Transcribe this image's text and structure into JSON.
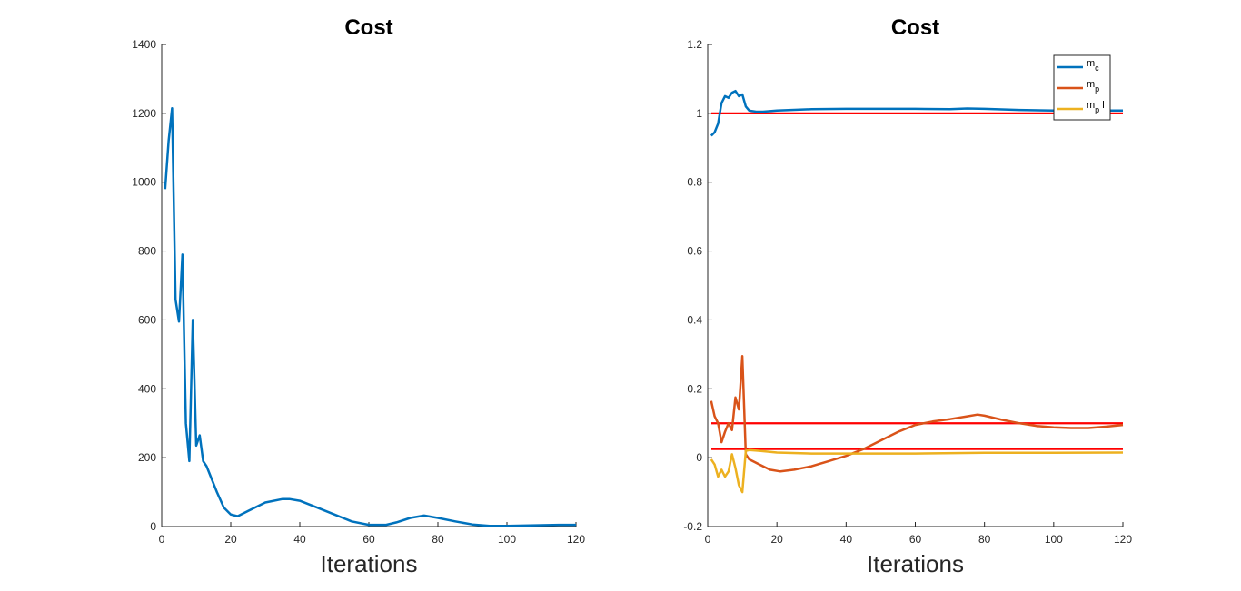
{
  "chart_data": [
    {
      "type": "line",
      "title": "Cost",
      "xlabel": "Iterations",
      "ylabel": "",
      "xlim": [
        0,
        120
      ],
      "ylim": [
        0,
        1400
      ],
      "xticks": [
        "0",
        "20",
        "40",
        "60",
        "80",
        "100",
        "120"
      ],
      "yticks": [
        "0",
        "200",
        "400",
        "600",
        "800",
        "1000",
        "1200",
        "1400"
      ],
      "grid": false,
      "series": [
        {
          "color": "#0072BD",
          "x": [
            1,
            2,
            3,
            4,
            5,
            6,
            7,
            8,
            9,
            10,
            11,
            12,
            13,
            14,
            16,
            18,
            20,
            22,
            25,
            30,
            35,
            37,
            40,
            45,
            50,
            55,
            60,
            65,
            68,
            72,
            76,
            80,
            85,
            90,
            95,
            100,
            105,
            110,
            115,
            120
          ],
          "y": [
            980,
            1120,
            1215,
            660,
            595,
            790,
            300,
            190,
            600,
            235,
            265,
            190,
            175,
            150,
            100,
            55,
            35,
            30,
            45,
            70,
            80,
            80,
            75,
            55,
            35,
            15,
            5,
            5,
            12,
            25,
            32,
            25,
            15,
            6,
            2,
            2,
            3,
            4,
            5,
            5
          ]
        }
      ]
    },
    {
      "type": "line",
      "title": "Cost",
      "xlabel": "Iterations",
      "ylabel": "",
      "xlim": [
        0,
        120
      ],
      "ylim": [
        -0.2,
        1.2
      ],
      "xticks": [
        "0",
        "20",
        "40",
        "60",
        "80",
        "100",
        "120"
      ],
      "yticks": [
        "-0.2",
        "0",
        "0.2",
        "0.4",
        "0.6",
        "0.8",
        "1",
        "1.2"
      ],
      "grid": false,
      "legend_position": "top-right",
      "reference_lines": [
        {
          "y": 1.0,
          "color": "#FF0000"
        },
        {
          "y": 0.1,
          "color": "#FF0000"
        },
        {
          "y": 0.025,
          "color": "#FF0000"
        }
      ],
      "series": [
        {
          "name": "m",
          "sub": "c",
          "suffix": "",
          "color": "#0072BD",
          "x": [
            1,
            2,
            3,
            4,
            5,
            6,
            7,
            8,
            9,
            10,
            11,
            12,
            14,
            16,
            20,
            30,
            40,
            60,
            70,
            75,
            80,
            90,
            100,
            110,
            120
          ],
          "y": [
            0.935,
            0.945,
            0.97,
            1.03,
            1.05,
            1.045,
            1.06,
            1.065,
            1.05,
            1.055,
            1.02,
            1.008,
            1.005,
            1.005,
            1.008,
            1.012,
            1.013,
            1.013,
            1.012,
            1.014,
            1.013,
            1.01,
            1.008,
            1.008,
            1.008
          ]
        },
        {
          "name": "m",
          "sub": "p",
          "suffix": "",
          "color": "#D95319",
          "x": [
            1,
            2,
            3,
            4,
            5,
            6,
            7,
            8,
            9,
            10,
            11,
            12,
            15,
            18,
            21,
            25,
            30,
            35,
            40,
            45,
            50,
            55,
            60,
            65,
            70,
            75,
            78,
            80,
            85,
            90,
            95,
            100,
            105,
            110,
            115,
            120
          ],
          "y": [
            0.165,
            0.12,
            0.1,
            0.045,
            0.075,
            0.1,
            0.08,
            0.175,
            0.14,
            0.295,
            0.01,
            -0.005,
            -0.02,
            -0.035,
            -0.04,
            -0.035,
            -0.025,
            -0.01,
            0.005,
            0.025,
            0.05,
            0.075,
            0.095,
            0.105,
            0.112,
            0.12,
            0.125,
            0.122,
            0.11,
            0.1,
            0.092,
            0.088,
            0.086,
            0.086,
            0.09,
            0.095
          ]
        },
        {
          "name": "m",
          "sub": "p",
          "suffix": "l",
          "color": "#EDB120",
          "x": [
            1,
            2,
            3,
            4,
            5,
            6,
            7,
            8,
            9,
            10,
            11,
            12,
            15,
            20,
            30,
            40,
            60,
            80,
            100,
            120
          ],
          "y": [
            -0.005,
            -0.02,
            -0.055,
            -0.035,
            -0.055,
            -0.04,
            0.01,
            -0.03,
            -0.08,
            -0.1,
            0.02,
            0.022,
            0.02,
            0.015,
            0.012,
            0.012,
            0.012,
            0.014,
            0.014,
            0.015
          ]
        }
      ]
    }
  ]
}
